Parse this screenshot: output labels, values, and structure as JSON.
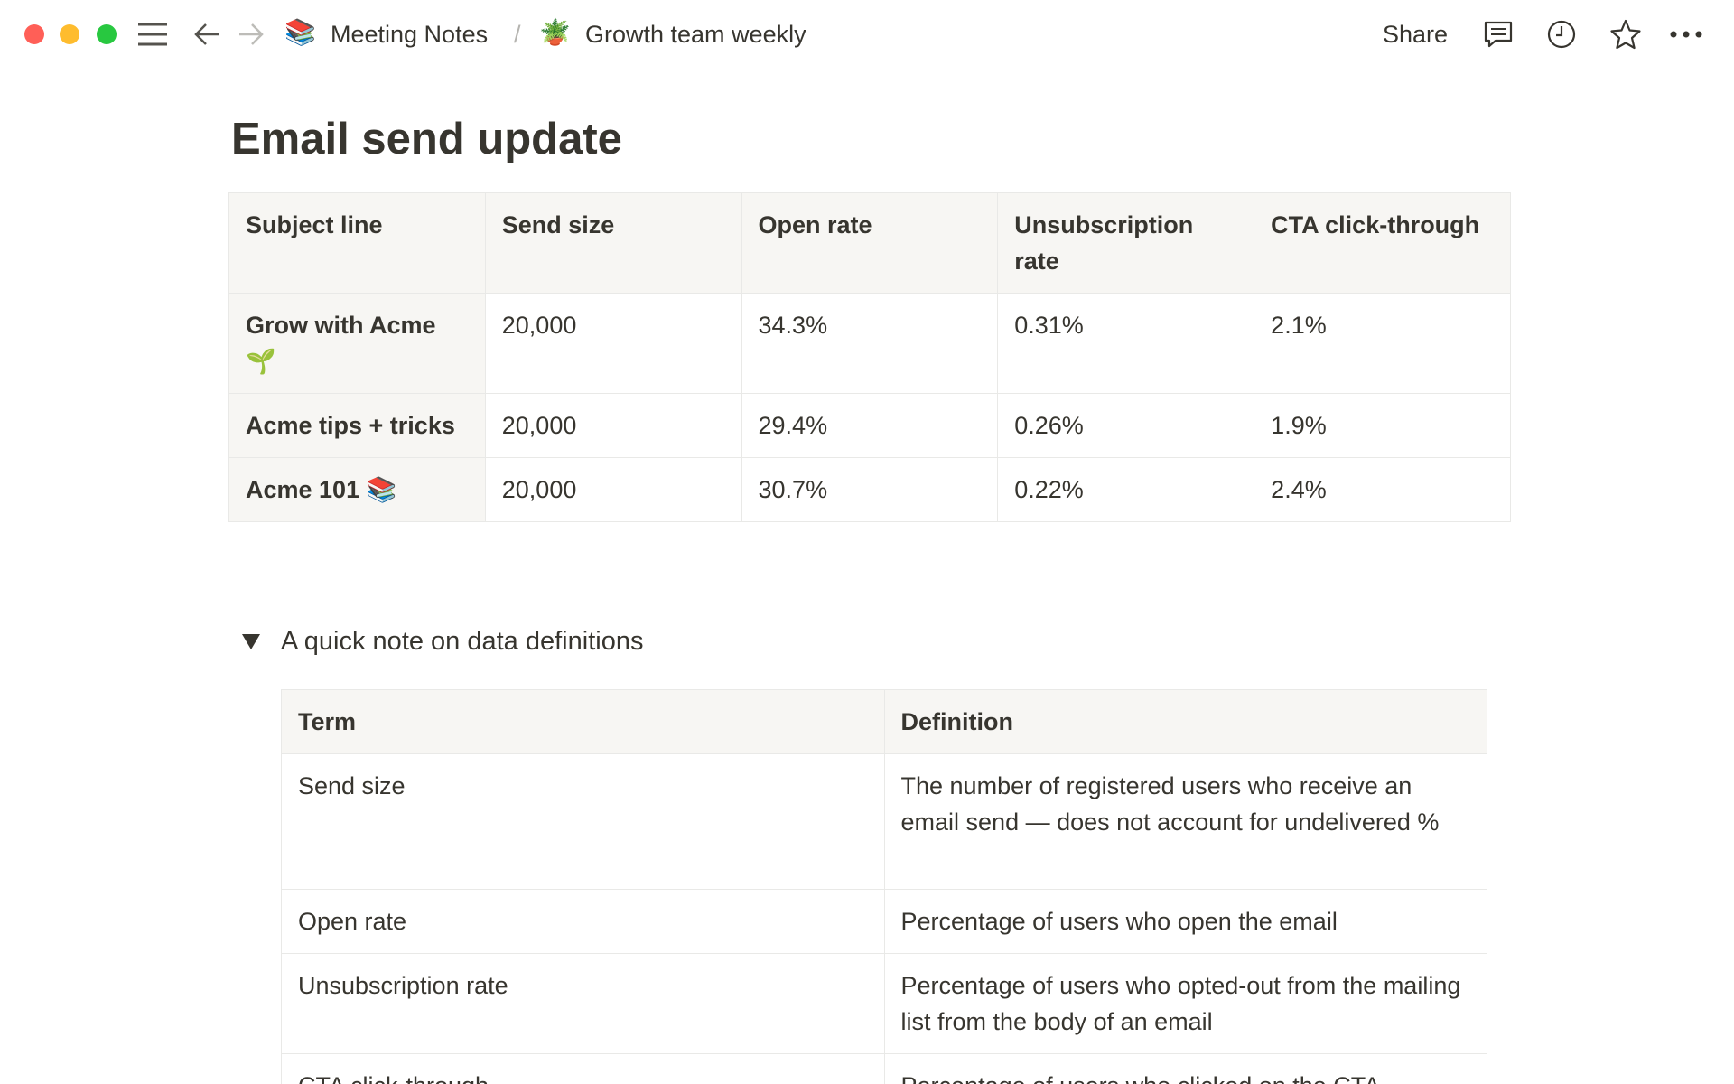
{
  "window": {
    "controls": {
      "close": "#ff5f57",
      "minimize": "#febc2e",
      "maximize": "#28c840"
    }
  },
  "breadcrumb": [
    {
      "icon": "📚",
      "label": "Meeting Notes"
    },
    {
      "separator": "/"
    },
    {
      "icon": "🪴",
      "label": "Growth team weekly"
    }
  ],
  "topbar": {
    "share_label": "Share",
    "icons": [
      "comment-icon",
      "clock-icon",
      "star-icon",
      "more-icon"
    ]
  },
  "page": {
    "title": "Email send update"
  },
  "email_table": {
    "headers": [
      "Subject line",
      "Send size",
      "Open rate",
      "Unsubscription rate",
      "CTA click-through"
    ],
    "rows": [
      [
        "Grow with Acme 🌱",
        "20,000",
        "34.3%",
        "0.31%",
        "2.1%"
      ],
      [
        "Acme tips + tricks",
        "20,000",
        "29.4%",
        "0.26%",
        "1.9%"
      ],
      [
        "Acme 101 📚",
        "20,000",
        "30.7%",
        "0.22%",
        "2.4%"
      ]
    ]
  },
  "toggle": {
    "label": "A quick note on data definitions",
    "expanded": true
  },
  "definitions_table": {
    "headers": [
      "Term",
      "Definition"
    ],
    "rows": [
      [
        "Send size",
        "The number of registered users who receive an email send — does not account for undelivered %"
      ],
      [
        "Open rate",
        "Percentage of users who open the email"
      ],
      [
        "Unsubscription rate",
        "Percentage of users who opted-out from the mailing list from the body of an email"
      ],
      [
        "CTA click-through",
        "Percentage of users who clicked on the CTA"
      ]
    ]
  }
}
